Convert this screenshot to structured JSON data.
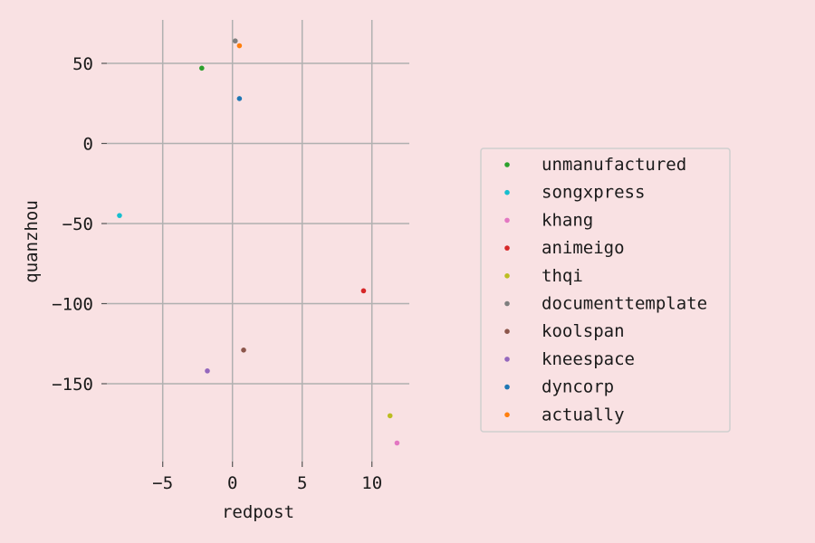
{
  "chart_data": {
    "type": "scatter",
    "title": "",
    "xlabel": "redpost",
    "ylabel": "quanzhou",
    "xlim": [
      -10,
      13
    ],
    "ylim": [
      -195,
      77
    ],
    "xticks": [
      -5,
      0,
      5,
      10
    ],
    "yticks": [
      50,
      0,
      -50,
      -100,
      -150
    ],
    "xtick_labels": [
      "−5",
      "0",
      "5",
      "10"
    ],
    "ytick_labels": [
      "50",
      "0",
      "−50",
      "−100",
      "−150"
    ],
    "grid": true,
    "legend_position": "right",
    "series": [
      {
        "name": "unmanufactured",
        "color": "#2ca02c",
        "x": [
          -2.2
        ],
        "y": [
          47
        ]
      },
      {
        "name": "songxpress",
        "color": "#17becf",
        "x": [
          -8.1
        ],
        "y": [
          -45
        ]
      },
      {
        "name": "khang",
        "color": "#e377c2",
        "x": [
          11.8
        ],
        "y": [
          -187
        ]
      },
      {
        "name": "animeigo",
        "color": "#d62728",
        "x": [
          9.4
        ],
        "y": [
          -92
        ]
      },
      {
        "name": "thqi",
        "color": "#bcbd22",
        "x": [
          11.3
        ],
        "y": [
          -170
        ]
      },
      {
        "name": "documenttemplate",
        "color": "#7f7f7f",
        "x": [
          0.2
        ],
        "y": [
          64
        ]
      },
      {
        "name": "koolspan",
        "color": "#8c564b",
        "x": [
          0.8
        ],
        "y": [
          -129
        ]
      },
      {
        "name": "kneespace",
        "color": "#9467bd",
        "x": [
          -1.8
        ],
        "y": [
          -142
        ]
      },
      {
        "name": "dyncorp",
        "color": "#1f77b4",
        "x": [
          0.5
        ],
        "y": [
          28
        ]
      },
      {
        "name": "actually",
        "color": "#ff7f0e",
        "x": [
          0.5
        ],
        "y": [
          61
        ]
      }
    ]
  }
}
